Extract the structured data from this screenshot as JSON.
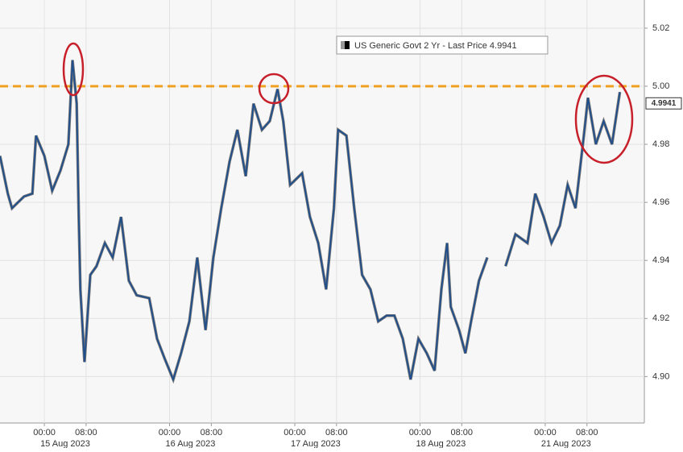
{
  "chart_data": {
    "type": "line",
    "series": [
      {
        "name": "US Generic Govt 2 Yr - Last Price 4.9941",
        "color": "#1f4e8c",
        "x": [
          -8.5,
          -7,
          -6.2,
          -3.9,
          -2.3,
          -1.6,
          0,
          1.5,
          3.1,
          4.6,
          5.4,
          6.2,
          6.6,
          6.9,
          7.7,
          8.8,
          10,
          11.6,
          13.1,
          14.7,
          16.2,
          17.7,
          20.1,
          21.6,
          23.1,
          24.7,
          26.2,
          27.8,
          29.3,
          30.9,
          32.4,
          33.9,
          35.5,
          37,
          38.6,
          40.1,
          41.7,
          43.2,
          44.7,
          45.8,
          47.1,
          49.4,
          50.9,
          52.5,
          54,
          55.5,
          56.3,
          57.9,
          59.4,
          60.9,
          62.5,
          64,
          65.6,
          67.1,
          68.7,
          70.2,
          71.7,
          73.3,
          74.8,
          76.1,
          77.2,
          77.9,
          79.5,
          80.7,
          81.8,
          83.3,
          84.9,
          86.5,
          88.4,
          90.3,
          92.6,
          94.1,
          95.7,
          97.2,
          98.8,
          100.3,
          101.8,
          103.4,
          104.2,
          105.7,
          107.2,
          108.8,
          110.3
        ],
        "values": [
          4.976,
          4.963,
          4.958,
          4.962,
          4.963,
          4.983,
          4.976,
          4.964,
          4.971,
          4.98,
          5.009,
          4.994,
          4.955,
          4.93,
          4.905,
          4.935,
          4.938,
          4.946,
          4.941,
          4.955,
          4.933,
          4.928,
          4.927,
          4.913,
          4.906,
          4.899,
          4.908,
          4.919,
          4.941,
          4.916,
          4.941,
          4.958,
          4.974,
          4.985,
          4.969,
          4.994,
          4.985,
          4.988,
          4.999,
          4.988,
          4.966,
          4.97,
          4.955,
          4.946,
          4.93,
          4.958,
          4.985,
          4.983,
          4.958,
          4.935,
          4.93,
          4.919,
          4.921,
          4.921,
          4.913,
          4.899,
          4.913,
          4.908,
          4.902,
          4.93,
          4.946,
          4.924,
          4.916,
          4.908,
          4.919,
          4.933,
          4.941,
          null,
          4.938,
          4.949,
          4.946,
          4.963,
          4.955,
          4.946,
          4.952,
          4.966,
          4.958,
          4.983,
          4.996,
          4.98,
          4.988,
          4.98,
          4.998
        ]
      }
    ],
    "last_price": 4.9941,
    "reference_line": {
      "value": 5.0,
      "color": "#f0a020"
    },
    "xlim": [
      -8.5,
      115
    ],
    "xticks": [
      {
        "value": 0,
        "label": "00:00"
      },
      {
        "value": 8,
        "label": "08:00"
      },
      {
        "value": 24,
        "label": "00:00"
      },
      {
        "value": 32,
        "label": "08:00"
      },
      {
        "value": 48,
        "label": "00:00"
      },
      {
        "value": 56,
        "label": "08:00"
      },
      {
        "value": 72,
        "label": "00:00"
      },
      {
        "value": 80,
        "label": "08:00"
      },
      {
        "value": 96,
        "label": "00:00"
      },
      {
        "value": 104,
        "label": "08:00"
      }
    ],
    "date_labels": [
      {
        "value": 4,
        "label": "15 Aug 2023"
      },
      {
        "value": 28,
        "label": "16 Aug 2023"
      },
      {
        "value": 52,
        "label": "17 Aug 2023"
      },
      {
        "value": 76,
        "label": "18 Aug 2023"
      },
      {
        "value": 100,
        "label": "21 Aug 2023"
      }
    ],
    "ylim": [
      4.884,
      5.0297
    ],
    "yticks": [
      {
        "value": 4.9,
        "label": "4.90"
      },
      4.92,
      4.94,
      4.96,
      4.98,
      {
        "value": 5.0,
        "label": "5.00"
      },
      5.02
    ],
    "grid": true
  }
}
